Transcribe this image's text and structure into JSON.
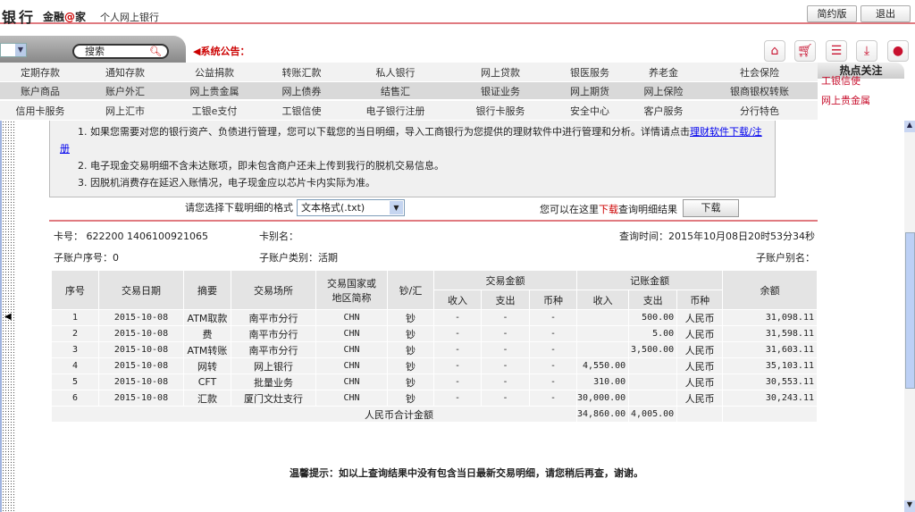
{
  "header": {
    "logo": "银行",
    "brand_pre": "金融",
    "brand_at": "@",
    "brand_post": "家",
    "subtitle": "个人网上银行",
    "simple_btn": "简约版",
    "logout_btn": "退出"
  },
  "toolbar": {
    "search_placeholder": "搜索",
    "notice": "系统公告："
  },
  "icons": [
    "home-icon",
    "cart-icon",
    "contact-card-icon",
    "download-icon",
    "headset-icon"
  ],
  "nav": {
    "row1": [
      "定期存款",
      "通知存款",
      "公益捐款",
      "转账汇款",
      "私人银行",
      "网上贷款",
      "银医服务",
      "养老金",
      "社会保险"
    ],
    "row2": [
      "账户商品",
      "账户外汇",
      "网上贵金属",
      "网上债券",
      "结售汇",
      "银证业务",
      "网上期货",
      "网上保险",
      "银商银权转账"
    ],
    "row3": [
      "信用卡服务",
      "网上汇市",
      "工银e支付",
      "工银信使",
      "电子银行注册",
      "银行卡服务",
      "安全中心",
      "客户服务",
      "分行特色"
    ]
  },
  "hot": {
    "title": "热点关注",
    "items": [
      "工银信使",
      "网上贵金属"
    ]
  },
  "notes": {
    "n1": "1. 如果您需要对您的银行资产、负债进行管理，您可以下载您的当日明细，导入工商银行为您提供的理财软件中进行管理和分析。详情请点击",
    "n1_link": "理财软件下载/注册",
    "n2": "2. 电子现金交易明细不含未达账项，即未包含商户还未上传到我行的脱机交易信息。",
    "n3": "3. 因脱机消费存在延迟入账情况，电子现金应以芯片卡内实际为准。"
  },
  "download": {
    "format_label": "请您选择下载明细的格式",
    "format_value": "文本格式(.txt)",
    "text_pre": "您可以在这里",
    "text_red": "下载",
    "text_post": "查询明细结果",
    "button": "下载"
  },
  "info": {
    "card_no": "卡号： 622200 1406100921065",
    "card_alias": "卡别名：",
    "query_time": "查询时间：2015年10月08日20时53分34秒",
    "sub_seq": "子账户序号：0",
    "sub_type": "子账户类别：活期",
    "sub_alias": "子账户别名："
  },
  "table": {
    "headers": {
      "seq": "序号",
      "date": "交易日期",
      "summary": "摘要",
      "place": "交易场所",
      "country": "交易国家或地区简称",
      "cash": "钞/汇",
      "trade_amt": "交易金额",
      "book_amt": "记账金额",
      "balance": "余额",
      "income": "收入",
      "expense": "支出",
      "currency": "币种"
    },
    "rows": [
      [
        "1",
        "2015-10-08",
        "ATM取款",
        "南平市分行",
        "CHN",
        "钞",
        "-",
        "-",
        "-",
        "",
        "500.00",
        "人民币",
        "31,098.11"
      ],
      [
        "2",
        "2015-10-08",
        "费",
        "南平市分行",
        "CHN",
        "钞",
        "-",
        "-",
        "-",
        "",
        "5.00",
        "人民币",
        "31,598.11"
      ],
      [
        "3",
        "2015-10-08",
        "ATM转账",
        "南平市分行",
        "CHN",
        "钞",
        "-",
        "-",
        "-",
        "",
        "3,500.00",
        "人民币",
        "31,603.11"
      ],
      [
        "4",
        "2015-10-08",
        "网转",
        "网上银行",
        "CHN",
        "钞",
        "-",
        "-",
        "-",
        "4,550.00",
        "",
        "人民币",
        "35,103.11"
      ],
      [
        "5",
        "2015-10-08",
        "CFT",
        "批量业务",
        "CHN",
        "钞",
        "-",
        "-",
        "-",
        "310.00",
        "",
        "人民币",
        "30,553.11"
      ],
      [
        "6",
        "2015-10-08",
        "汇款",
        "厦门文灶支行",
        "CHN",
        "钞",
        "-",
        "-",
        "-",
        "30,000.00",
        "",
        "人民币",
        "30,243.11"
      ]
    ],
    "total_label": "人民币合计金额",
    "total_income": "34,860.00",
    "total_expense": "4,005.00"
  },
  "tip": "温馨提示：如以上查询结果中没有包含当日最新交易明细，请您稍后再查，谢谢。"
}
